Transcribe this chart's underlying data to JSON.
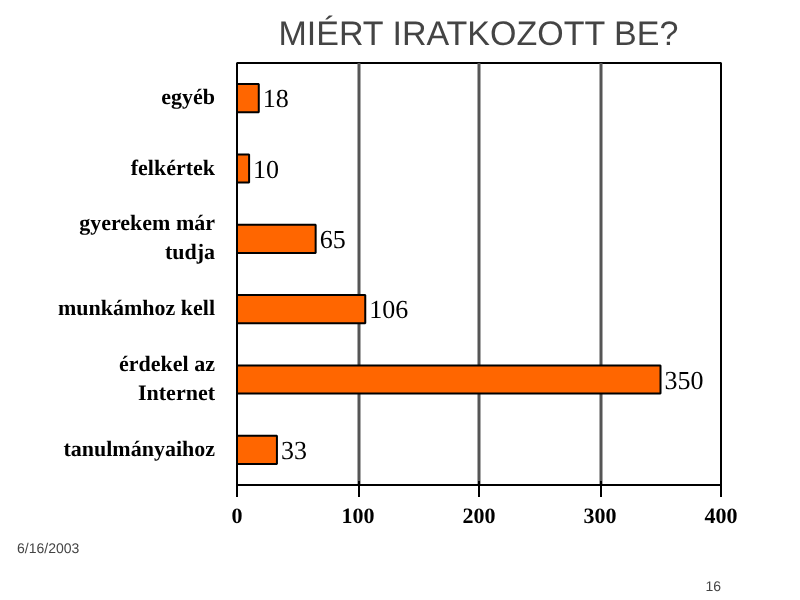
{
  "chart_data": {
    "type": "bar",
    "orientation": "horizontal",
    "title": "MIÉRT IRATKOZOTT BE?",
    "categories": [
      "egyéb",
      "felkértek",
      "gyerekem már\ntudja",
      "munkámhoz kell",
      "érdekel az\nInternet",
      "tanulmányaihoz"
    ],
    "values": [
      18,
      10,
      65,
      106,
      350,
      33
    ],
    "color": "#ff6600",
    "xlim": [
      0,
      400
    ],
    "xticks": [
      0,
      100,
      200,
      300,
      400
    ],
    "grid": "x",
    "data_labels": true,
    "annotations": [
      "6/16/2003",
      "16"
    ]
  }
}
